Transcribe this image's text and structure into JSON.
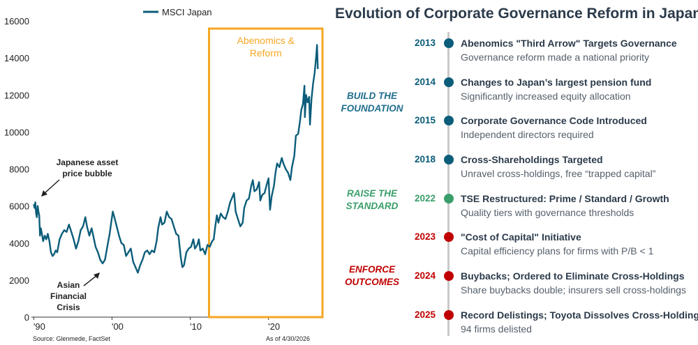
{
  "chart_data": {
    "type": "line",
    "series": [
      {
        "name": "MSCI Japan",
        "color": "#0b5d7a",
        "points": [
          [
            1990.0,
            6100
          ],
          [
            1990.1,
            5900
          ],
          [
            1990.2,
            6200
          ],
          [
            1990.3,
            5600
          ],
          [
            1990.4,
            5400
          ],
          [
            1990.5,
            6000
          ],
          [
            1990.6,
            5700
          ],
          [
            1990.7,
            5500
          ],
          [
            1990.8,
            4400
          ],
          [
            1990.9,
            4800
          ],
          [
            1991.0,
            4600
          ],
          [
            1991.2,
            4100
          ],
          [
            1991.4,
            4400
          ],
          [
            1991.6,
            4200
          ],
          [
            1991.8,
            4500
          ],
          [
            1992.0,
            4100
          ],
          [
            1992.2,
            3500
          ],
          [
            1992.4,
            3300
          ],
          [
            1992.6,
            3400
          ],
          [
            1992.8,
            3600
          ],
          [
            1993.0,
            3500
          ],
          [
            1993.3,
            4200
          ],
          [
            1993.6,
            4500
          ],
          [
            1993.9,
            4700
          ],
          [
            1994.2,
            4600
          ],
          [
            1994.5,
            5000
          ],
          [
            1994.8,
            4600
          ],
          [
            1995.1,
            4200
          ],
          [
            1995.4,
            3700
          ],
          [
            1995.7,
            4100
          ],
          [
            1996.0,
            4700
          ],
          [
            1996.3,
            4900
          ],
          [
            1996.6,
            5400
          ],
          [
            1996.8,
            4900
          ],
          [
            1997.1,
            4400
          ],
          [
            1997.4,
            4800
          ],
          [
            1997.7,
            4200
          ],
          [
            1997.9,
            3800
          ],
          [
            1998.2,
            3500
          ],
          [
            1998.5,
            3100
          ],
          [
            1998.8,
            2900
          ],
          [
            1999.1,
            3100
          ],
          [
            1999.4,
            3800
          ],
          [
            1999.7,
            4500
          ],
          [
            1999.9,
            5100
          ],
          [
            2000.1,
            5700
          ],
          [
            2000.3,
            5400
          ],
          [
            2000.6,
            4900
          ],
          [
            2000.9,
            4400
          ],
          [
            2001.2,
            4000
          ],
          [
            2001.5,
            3900
          ],
          [
            2001.8,
            3300
          ],
          [
            2002.1,
            3500
          ],
          [
            2002.4,
            3700
          ],
          [
            2002.7,
            3000
          ],
          [
            2003.0,
            2700
          ],
          [
            2003.3,
            2400
          ],
          [
            2003.6,
            2800
          ],
          [
            2003.9,
            3100
          ],
          [
            2004.2,
            3500
          ],
          [
            2004.5,
            3600
          ],
          [
            2004.8,
            3400
          ],
          [
            2005.1,
            3600
          ],
          [
            2005.4,
            3500
          ],
          [
            2005.7,
            4100
          ],
          [
            2005.9,
            4800
          ],
          [
            2006.2,
            5400
          ],
          [
            2006.4,
            5000
          ],
          [
            2006.7,
            5100
          ],
          [
            2007.0,
            5700
          ],
          [
            2007.3,
            5400
          ],
          [
            2007.6,
            5300
          ],
          [
            2007.9,
            4900
          ],
          [
            2008.2,
            4500
          ],
          [
            2008.5,
            4400
          ],
          [
            2008.8,
            3200
          ],
          [
            2009.0,
            2700
          ],
          [
            2009.2,
            2800
          ],
          [
            2009.5,
            3500
          ],
          [
            2009.8,
            3700
          ],
          [
            2010.1,
            3800
          ],
          [
            2010.4,
            4200
          ],
          [
            2010.6,
            3700
          ],
          [
            2010.9,
            3900
          ],
          [
            2011.1,
            4200
          ],
          [
            2011.3,
            3600
          ],
          [
            2011.6,
            3700
          ],
          [
            2011.9,
            3400
          ],
          [
            2012.2,
            3900
          ],
          [
            2012.5,
            3800
          ],
          [
            2012.8,
            4100
          ],
          [
            2013.0,
            4200
          ],
          [
            2013.2,
            4900
          ],
          [
            2013.4,
            5500
          ],
          [
            2013.6,
            5100
          ],
          [
            2013.9,
            5600
          ],
          [
            2014.2,
            5400
          ],
          [
            2014.5,
            5300
          ],
          [
            2014.8,
            5700
          ],
          [
            2015.1,
            6200
          ],
          [
            2015.4,
            6500
          ],
          [
            2015.6,
            6700
          ],
          [
            2015.8,
            5700
          ],
          [
            2016.1,
            5300
          ],
          [
            2016.4,
            4900
          ],
          [
            2016.7,
            5100
          ],
          [
            2016.9,
            5900
          ],
          [
            2017.2,
            6300
          ],
          [
            2017.5,
            6400
          ],
          [
            2017.8,
            7100
          ],
          [
            2018.0,
            7400
          ],
          [
            2018.2,
            6800
          ],
          [
            2018.5,
            6900
          ],
          [
            2018.8,
            7300
          ],
          [
            2018.95,
            6300
          ],
          [
            2019.2,
            6600
          ],
          [
            2019.5,
            6700
          ],
          [
            2019.8,
            7200
          ],
          [
            2020.0,
            7500
          ],
          [
            2020.2,
            5800
          ],
          [
            2020.4,
            6500
          ],
          [
            2020.7,
            7100
          ],
          [
            2020.9,
            7800
          ],
          [
            2021.1,
            8300
          ],
          [
            2021.4,
            8100
          ],
          [
            2021.7,
            8600
          ],
          [
            2021.9,
            8300
          ],
          [
            2022.2,
            8000
          ],
          [
            2022.5,
            7800
          ],
          [
            2022.8,
            7400
          ],
          [
            2023.0,
            8100
          ],
          [
            2023.3,
            8700
          ],
          [
            2023.5,
            9800
          ],
          [
            2023.8,
            9900
          ],
          [
            2024.0,
            10500
          ],
          [
            2024.2,
            11200
          ],
          [
            2024.4,
            11500
          ],
          [
            2024.6,
            12500
          ],
          [
            2024.65,
            10800
          ],
          [
            2024.8,
            12000
          ],
          [
            2025.0,
            11600
          ],
          [
            2025.2,
            11900
          ],
          [
            2025.3,
            10400
          ],
          [
            2025.5,
            11800
          ],
          [
            2025.7,
            12600
          ],
          [
            2025.9,
            13200
          ],
          [
            2026.1,
            14100
          ],
          [
            2026.2,
            14700
          ],
          [
            2026.3,
            13400
          ]
        ]
      }
    ],
    "xticks": [
      {
        "value": 1990,
        "label": "'90"
      },
      {
        "value": 2000,
        "label": "'00"
      },
      {
        "value": 2010,
        "label": "'10"
      },
      {
        "value": 2020,
        "label": "'20"
      }
    ],
    "yticks": [
      0,
      2000,
      4000,
      6000,
      8000,
      10000,
      12000,
      14000,
      16000
    ],
    "xlim": [
      1989.7,
      2026.9
    ],
    "ylim": [
      0,
      16000
    ],
    "legend": {
      "label": "MSCI Japan",
      "position": "top-left"
    },
    "highlight": {
      "label_lines": [
        "Abenomics &",
        "Reform"
      ],
      "x_start": 2012.4,
      "x_end": 2026.9,
      "color": "#f5a623"
    },
    "annotations": [
      {
        "lines": [
          "Japanese asset",
          "price bubble"
        ]
      },
      {
        "lines": [
          "Asian",
          "Financial",
          "Crisis"
        ]
      }
    ],
    "source": "Source: Glenmede, FactSet",
    "as_of": "As of 4/30/2026"
  },
  "timeline": {
    "title": "Evolution of Corporate Governance Reform in Japan",
    "phases": [
      {
        "lines": [
          "BUILD THE",
          "FOUNDATION"
        ],
        "color": "#1f6e8c"
      },
      {
        "lines": [
          "RAISE THE",
          "STANDARD"
        ],
        "color": "#3a9e6a"
      },
      {
        "lines": [
          "ENFORCE",
          "OUTCOMES"
        ],
        "color": "#c00000"
      }
    ],
    "events": [
      {
        "year": "2013",
        "title": "Abenomics \"Third Arrow\" Targets Governance",
        "desc": "Governance reform made a national priority",
        "color": "#0b5d7a"
      },
      {
        "year": "2014",
        "title": "Changes to Japan’s largest pension fund",
        "desc": "Significantly increased equity allocation",
        "color": "#0b5d7a"
      },
      {
        "year": "2015",
        "title": "Corporate Governance Code Introduced",
        "desc": "Independent directors required",
        "color": "#0b5d7a"
      },
      {
        "year": "2018",
        "title": "Cross-Shareholdings Targeted",
        "desc": "Unravel cross-holdings, free “trapped capital”",
        "color": "#0b5d7a"
      },
      {
        "year": "2022",
        "title": "TSE Restructured: Prime / Standard / Growth",
        "desc": "Quality tiers with governance thresholds",
        "color": "#3a9e6a"
      },
      {
        "year": "2023",
        "title": "\"Cost of Capital\" Initiative",
        "desc": "Capital efficiency plans for firms with P/B < 1",
        "color": "#c00000"
      },
      {
        "year": "2024",
        "title": "Buybacks; Ordered to Eliminate Cross-Holdings",
        "desc": "Share buybacks double; insurers sell cross-holdings",
        "color": "#c00000"
      },
      {
        "year": "2025",
        "title": "Record Delistings; Toyota Dissolves Cross-Holdings",
        "desc": "94 firms delisted",
        "color": "#c00000"
      }
    ]
  }
}
